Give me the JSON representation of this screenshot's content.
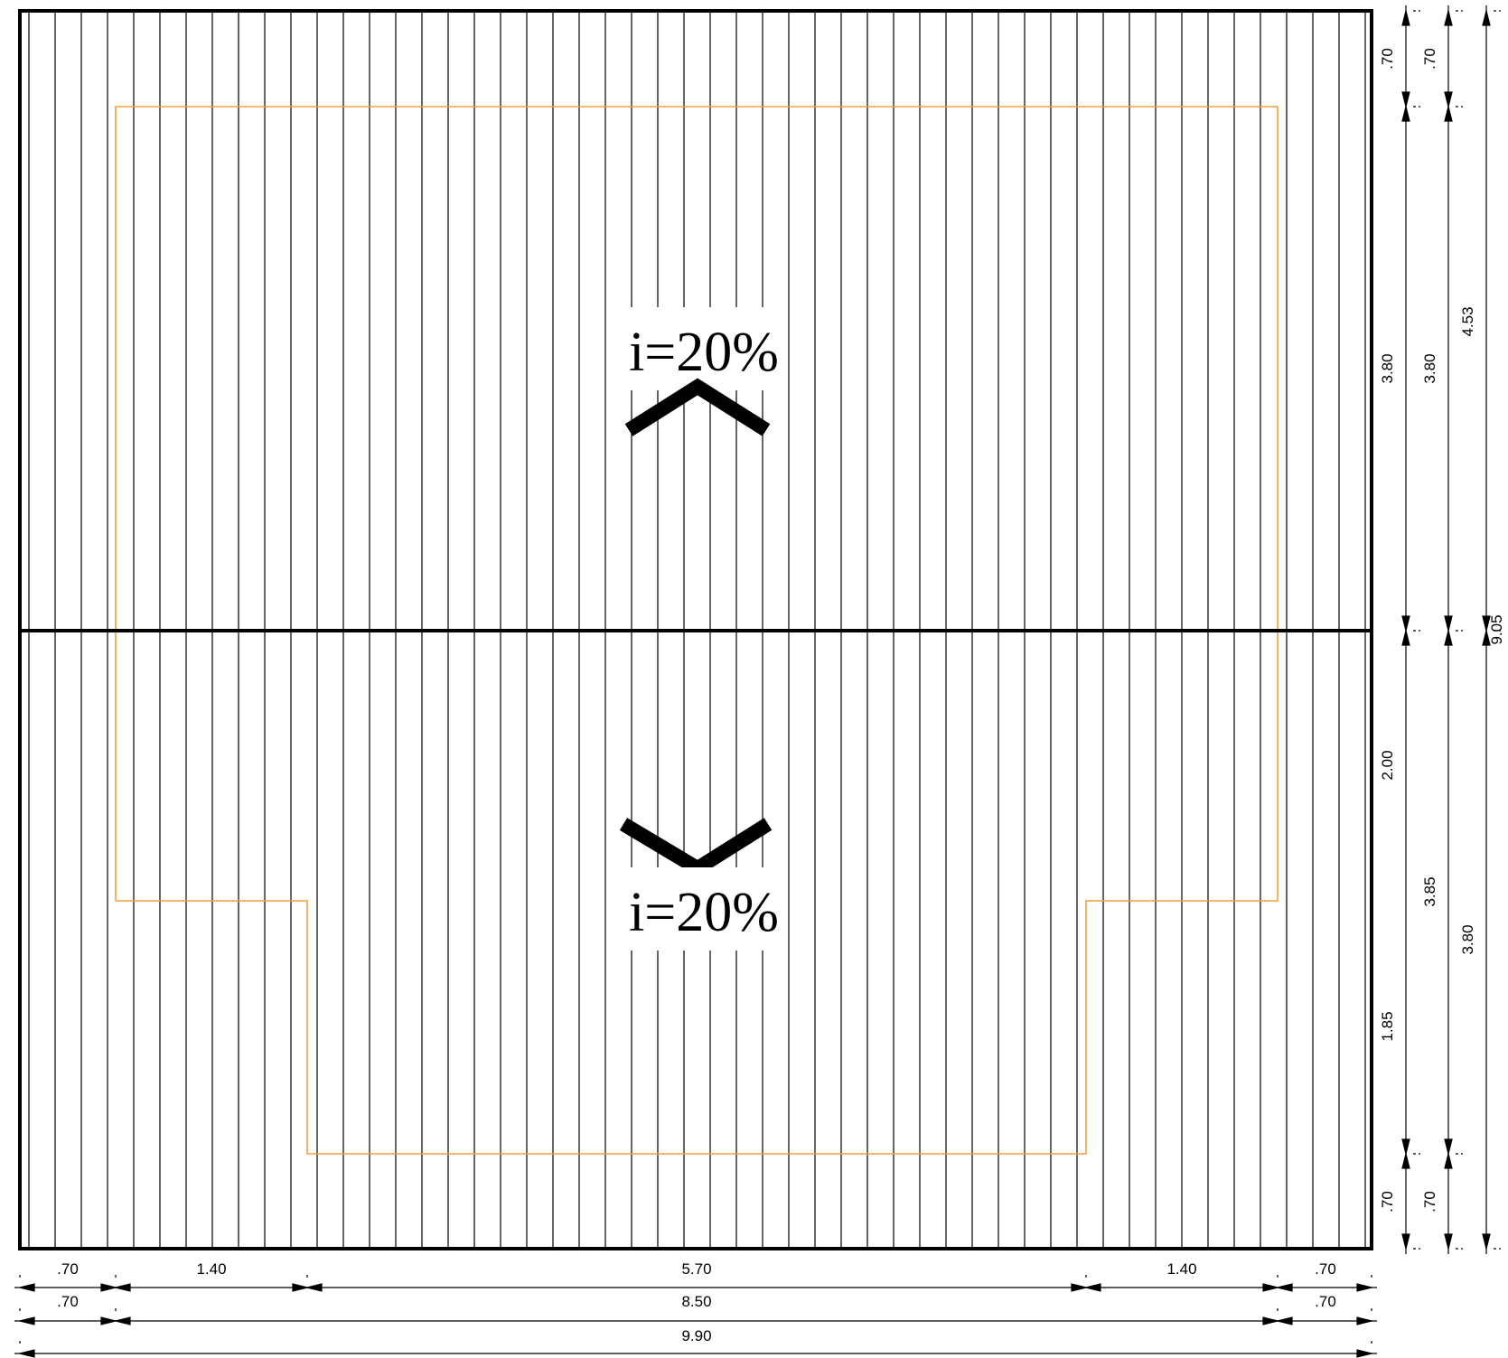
{
  "plan": {
    "slopes": [
      {
        "label": "i=20%",
        "direction": "up"
      },
      {
        "label": "i=20%",
        "direction": "down"
      }
    ],
    "colors": {
      "outline": "#000000",
      "wall_outline": "#f0a040",
      "hatch": "#000000"
    }
  },
  "dimensions": {
    "bottom_row1": [
      ".70",
      "1.40",
      "5.70",
      "1.40",
      ".70"
    ],
    "bottom_row2": [
      ".70",
      "8.50",
      ".70"
    ],
    "bottom_row3": [
      "9.90"
    ],
    "right_col1": [
      ".70",
      "3.80",
      "2.00",
      "1.85",
      ".70"
    ],
    "right_col2": [
      ".70",
      "3.80",
      "3.85",
      ".70"
    ],
    "right_col3": [
      "4.53",
      "3.80"
    ],
    "right_col4": [
      "9.05"
    ]
  }
}
